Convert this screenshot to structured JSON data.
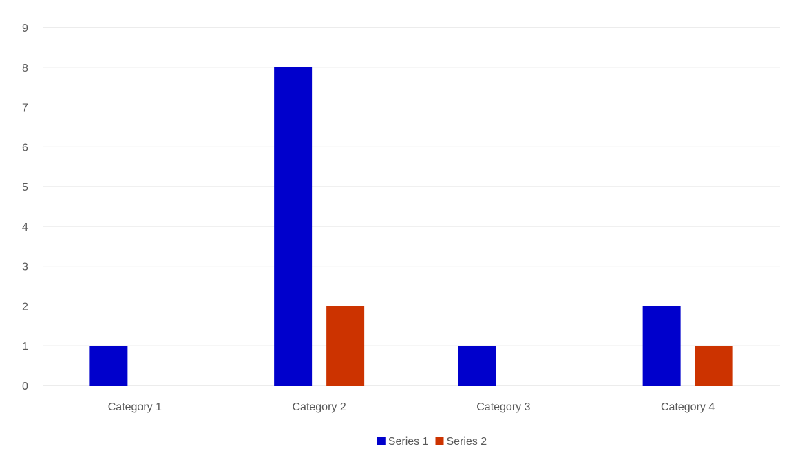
{
  "chart_data": {
    "type": "bar",
    "categories": [
      "Category 1",
      "Category 2",
      "Category 3",
      "Category 4"
    ],
    "series": [
      {
        "name": "Series 1",
        "values": [
          1,
          8,
          1,
          2
        ],
        "color": "#0000cc"
      },
      {
        "name": "Series 2",
        "values": [
          0,
          2,
          0,
          1
        ],
        "color": "#cc3300"
      }
    ],
    "ylim": [
      0,
      9
    ],
    "y_ticks": [
      "0",
      "1",
      "2",
      "3",
      "4",
      "5",
      "6",
      "7",
      "8",
      "9"
    ],
    "grid": true,
    "legend_position": "bottom",
    "gridline_color": "#d9d9d9"
  }
}
